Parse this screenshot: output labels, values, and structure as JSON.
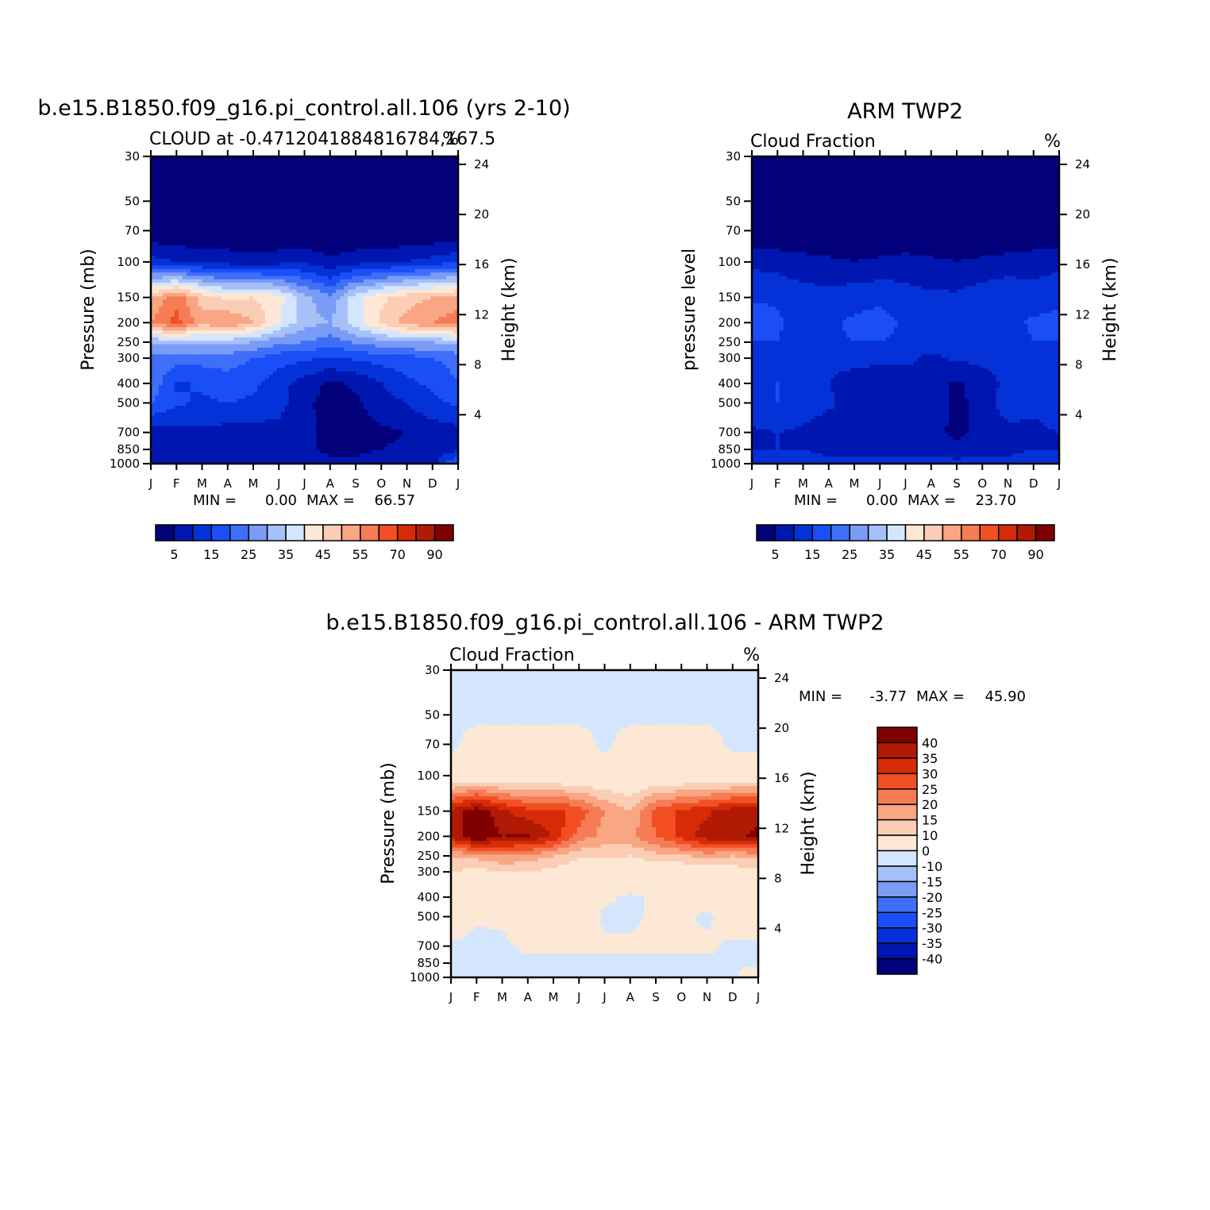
{
  "chart_data": [
    {
      "type": "heatmap",
      "title": "b.e15.B1850.f09_g16.pi_control.all.106 (yrs 2-10)",
      "subtitle_left": "CLOUD at -0.4712041884816784,167.5",
      "subtitle_right": "%",
      "ylabel": "Pressure (mb)",
      "y2label": "Height (km)",
      "stats": {
        "min_label": "MIN =",
        "min": "0.00",
        "max_label": "MAX =",
        "max": "66.57"
      },
      "x_ticks": [
        "J",
        "F",
        "M",
        "A",
        "M",
        "J",
        "J",
        "A",
        "S",
        "O",
        "N",
        "D",
        "J"
      ],
      "y_ticks": [
        "30",
        "50",
        "70",
        "100",
        "150",
        "200",
        "250",
        "300",
        "400",
        "500",
        "700",
        "850",
        "1000"
      ],
      "y2_ticks": [
        "24",
        "20",
        "16",
        "12",
        "8",
        "4"
      ],
      "colorbar_labels": [
        "5",
        "15",
        "25",
        "35",
        "45",
        "55",
        "70",
        "90"
      ],
      "pressure_levels": [
        30,
        50,
        70,
        100,
        150,
        200,
        250,
        300,
        400,
        500,
        700,
        850,
        1000
      ],
      "values": [
        [
          0,
          0,
          0,
          0,
          0,
          0,
          0,
          0,
          0,
          0,
          0,
          0,
          0
        ],
        [
          0,
          0,
          0,
          0,
          0,
          0,
          0,
          0,
          0,
          0,
          0,
          0,
          0
        ],
        [
          1,
          0,
          0,
          0,
          0,
          0,
          0,
          0,
          0,
          0,
          0,
          0,
          1
        ],
        [
          12,
          10,
          9,
          8,
          7,
          8,
          9,
          6,
          8,
          9,
          10,
          12,
          14
        ],
        [
          50,
          58,
          48,
          44,
          45,
          42,
          32,
          26,
          38,
          44,
          48,
          50,
          52
        ],
        [
          55,
          62,
          52,
          55,
          50,
          40,
          32,
          30,
          38,
          46,
          52,
          55,
          58
        ],
        [
          30,
          32,
          32,
          32,
          30,
          26,
          25,
          22,
          26,
          28,
          30,
          30,
          32
        ],
        [
          24,
          22,
          22,
          22,
          20,
          17,
          16,
          14,
          16,
          17,
          18,
          20,
          22
        ],
        [
          24,
          14,
          16,
          18,
          16,
          12,
          8,
          4,
          6,
          10,
          14,
          16,
          20
        ],
        [
          20,
          16,
          14,
          15,
          14,
          12,
          6,
          3,
          4,
          8,
          10,
          14,
          16
        ],
        [
          8,
          8,
          9,
          8,
          8,
          8,
          7,
          3,
          3,
          4,
          5,
          7,
          8
        ],
        [
          8,
          8,
          9,
          8,
          8,
          7,
          6,
          4,
          4,
          5,
          6,
          7,
          8
        ],
        [
          10,
          10,
          10,
          9,
          9,
          9,
          8,
          6,
          6,
          7,
          8,
          8,
          22
        ]
      ],
      "colorbar_levels": [
        5,
        10,
        15,
        20,
        25,
        30,
        35,
        40,
        45,
        50,
        55,
        60,
        70,
        80,
        90
      ],
      "colors": [
        "#02007a",
        "#0016b0",
        "#0432d8",
        "#1a4ff7",
        "#3f6ff9",
        "#7a9bf6",
        "#a6c0f8",
        "#d4e6fd",
        "#fde8d6",
        "#fbcdb5",
        "#f8a683",
        "#f57c55",
        "#f24f22",
        "#d72b08",
        "#b11a04",
        "#800000"
      ]
    },
    {
      "type": "heatmap",
      "title": "ARM TWP2",
      "subtitle_left": "Cloud Fraction",
      "subtitle_right": "%",
      "ylabel": "pressure level",
      "y2label": "Height (km)",
      "stats": {
        "min_label": "MIN =",
        "min": "0.00",
        "max_label": "MAX =",
        "max": "23.70"
      },
      "x_ticks": [
        "J",
        "F",
        "M",
        "A",
        "M",
        "J",
        "J",
        "A",
        "S",
        "O",
        "N",
        "D",
        "J"
      ],
      "y_ticks": [
        "30",
        "50",
        "70",
        "100",
        "150",
        "200",
        "250",
        "300",
        "400",
        "500",
        "700",
        "850",
        "1000"
      ],
      "y2_ticks": [
        "24",
        "20",
        "16",
        "12",
        "8",
        "4"
      ],
      "colorbar_labels": [
        "5",
        "15",
        "25",
        "35",
        "45",
        "55",
        "70",
        "90"
      ],
      "pressure_levels": [
        30,
        50,
        70,
        100,
        150,
        200,
        250,
        300,
        400,
        500,
        700,
        850,
        1000
      ],
      "values": [
        [
          0,
          0,
          0,
          0,
          0,
          0,
          0,
          0,
          0,
          0,
          0,
          0,
          0
        ],
        [
          0,
          0,
          0,
          0,
          0,
          0,
          0,
          0,
          0,
          0,
          0,
          0,
          0
        ],
        [
          0,
          0,
          0,
          0,
          0,
          0,
          0,
          0,
          0,
          0,
          0,
          0,
          0
        ],
        [
          9,
          8,
          7,
          6,
          5,
          6,
          7,
          6,
          5,
          6,
          7,
          8,
          9
        ],
        [
          14,
          14,
          12,
          12,
          13,
          14,
          12,
          11,
          11,
          13,
          14,
          12,
          13
        ],
        [
          19,
          16,
          12,
          14,
          16,
          17,
          14,
          11,
          13,
          14,
          13,
          16,
          17
        ],
        [
          15,
          15,
          12,
          14,
          15,
          15,
          14,
          12,
          13,
          14,
          13,
          15,
          15
        ],
        [
          14,
          14,
          12,
          12,
          12,
          11,
          11,
          9,
          11,
          11,
          12,
          13,
          14
        ],
        [
          15,
          15,
          12,
          10,
          7,
          7,
          8,
          7,
          4,
          8,
          11,
          12,
          14
        ],
        [
          14,
          15,
          13,
          11,
          8,
          8,
          8,
          9,
          3,
          8,
          12,
          11,
          13
        ],
        [
          9,
          10,
          9,
          7,
          7,
          8,
          7,
          8,
          3,
          7,
          9,
          9,
          10
        ],
        [
          10,
          10,
          10,
          9,
          9,
          9,
          9,
          9,
          8,
          9,
          9,
          10,
          10
        ],
        [
          12,
          12,
          12,
          11,
          11,
          11,
          11,
          11,
          11,
          11,
          11,
          12,
          14
        ]
      ],
      "colorbar_levels": [
        5,
        10,
        15,
        20,
        25,
        30,
        35,
        40,
        45,
        50,
        55,
        60,
        70,
        80,
        90
      ],
      "colors": [
        "#02007a",
        "#0016b0",
        "#0432d8",
        "#1a4ff7",
        "#3f6ff9",
        "#7a9bf6",
        "#a6c0f8",
        "#d4e6fd",
        "#fde8d6",
        "#fbcdb5",
        "#f8a683",
        "#f57c55",
        "#f24f22",
        "#d72b08",
        "#b11a04",
        "#800000"
      ]
    },
    {
      "type": "heatmap",
      "title": "b.e15.B1850.f09_g16.pi_control.all.106 - ARM TWP2",
      "subtitle_left": "Cloud Fraction",
      "subtitle_right": "%",
      "ylabel": "Pressure (mb)",
      "y2label": "Height (km)",
      "stats": {
        "min_label": "MIN =",
        "min": "-3.77",
        "max_label": "MAX =",
        "max": "45.90"
      },
      "x_ticks": [
        "J",
        "F",
        "M",
        "A",
        "M",
        "J",
        "J",
        "A",
        "S",
        "O",
        "N",
        "D",
        "J"
      ],
      "y_ticks": [
        "30",
        "50",
        "70",
        "100",
        "150",
        "200",
        "250",
        "300",
        "400",
        "500",
        "700",
        "850",
        "1000"
      ],
      "y2_ticks": [
        "24",
        "20",
        "16",
        "12",
        "8",
        "4"
      ],
      "colorbar_labels": [
        "40",
        "35",
        "30",
        "25",
        "20",
        "15",
        "10",
        "0",
        "-10",
        "-15",
        "-20",
        "-25",
        "-30",
        "-35",
        "-40"
      ],
      "pressure_levels": [
        30,
        50,
        70,
        100,
        150,
        200,
        250,
        300,
        400,
        500,
        700,
        850,
        1000
      ],
      "values": [
        [
          -1,
          -1,
          -1,
          -1,
          -1,
          -1,
          -1,
          -1,
          -1,
          -1,
          -1,
          -1,
          -1
        ],
        [
          -1,
          -1,
          -1,
          -1,
          -1,
          -1,
          -1,
          -1,
          -1,
          -1,
          -1,
          -1,
          -1
        ],
        [
          -1,
          2,
          2,
          2,
          2,
          2,
          -1,
          2,
          2,
          2,
          2,
          -1,
          -1
        ],
        [
          3,
          3,
          3,
          3,
          3,
          3,
          3,
          3,
          3,
          3,
          3,
          3,
          4
        ],
        [
          36,
          44,
          36,
          32,
          32,
          28,
          20,
          15,
          27,
          31,
          34,
          38,
          38
        ],
        [
          36,
          46,
          40,
          41,
          34,
          23,
          18,
          19,
          25,
          32,
          38,
          39,
          41
        ],
        [
          15,
          17,
          20,
          18,
          15,
          11,
          11,
          10,
          13,
          14,
          17,
          15,
          17
        ],
        [
          10,
          8,
          10,
          10,
          8,
          6,
          5,
          5,
          5,
          5,
          6,
          7,
          8
        ],
        [
          9,
          0,
          4,
          8,
          9,
          5,
          1,
          -1,
          1,
          2,
          3,
          4,
          6
        ],
        [
          6,
          1,
          1,
          4,
          6,
          4,
          -1,
          -1,
          1,
          1,
          -1,
          3,
          3
        ],
        [
          -1,
          -2,
          -1,
          1,
          1,
          1,
          1,
          1,
          1,
          1,
          1,
          -1,
          -1
        ],
        [
          -2,
          -2,
          -1,
          -1,
          -1,
          -1,
          -1,
          -1,
          -1,
          -1,
          -1,
          -1,
          -2
        ],
        [
          -3,
          -2,
          -2,
          -2,
          -2,
          -2,
          -2,
          -2,
          -2,
          -2,
          -2,
          -2,
          8
        ]
      ],
      "colorbar_levels": [
        -40,
        -35,
        -30,
        -25,
        -20,
        -15,
        -10,
        0,
        10,
        15,
        20,
        25,
        30,
        35,
        40
      ],
      "colors": [
        "#02007a",
        "#0016b0",
        "#0432d8",
        "#1a4ff7",
        "#3f6ff9",
        "#7a9bf6",
        "#a6c0f8",
        "#d4e6fd",
        "#fde8d6",
        "#fbcdb5",
        "#f8a683",
        "#f57c55",
        "#f24f22",
        "#d72b08",
        "#b11a04",
        "#800000"
      ]
    }
  ]
}
